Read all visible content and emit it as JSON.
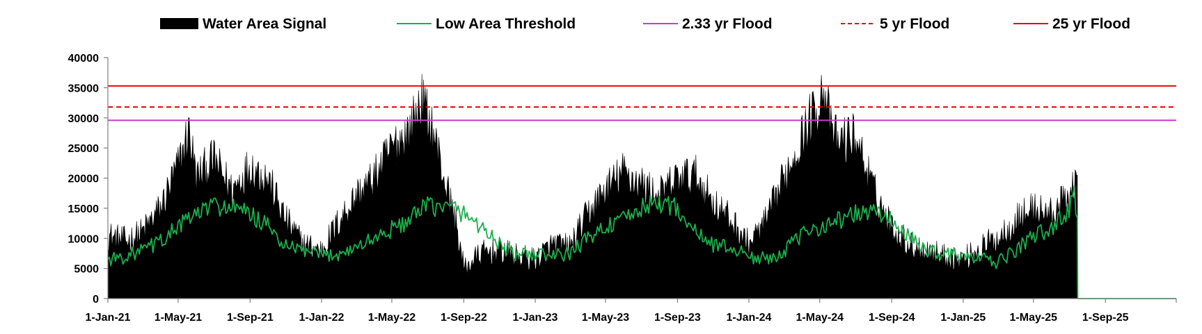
{
  "colors": {
    "water_area_signal": "#000000",
    "low_area_threshold": "#19b04b",
    "flood_2_33yr": "#c83cc8",
    "flood_5yr": "#e60000",
    "flood_25yr": "#e60000"
  },
  "chart_data": {
    "type": "area",
    "title": "",
    "xlabel": "",
    "ylabel": "",
    "ylim": [
      0,
      40000
    ],
    "y_ticks": [
      0,
      5000,
      10000,
      15000,
      20000,
      25000,
      30000,
      35000,
      40000
    ],
    "y_tick_labels": [
      "0",
      "5000",
      "10000",
      "15000",
      "20000",
      "25000",
      "30000",
      "35000",
      "40000"
    ],
    "x_range": [
      "2021-01-01",
      "2025-12-31"
    ],
    "x_ticks": [
      "2021-01-01",
      "2021-05-01",
      "2021-09-01",
      "2022-01-01",
      "2022-05-01",
      "2022-09-01",
      "2023-01-01",
      "2023-05-01",
      "2023-09-01",
      "2024-01-01",
      "2024-05-01",
      "2024-09-01",
      "2025-01-01",
      "2025-05-01",
      "2025-09-01"
    ],
    "x_tick_labels": [
      "1-Jan-21",
      "1-May-21",
      "1-Sep-21",
      "1-Jan-22",
      "1-May-22",
      "1-Sep-22",
      "1-Jan-23",
      "1-May-23",
      "1-Sep-23",
      "1-Jan-24",
      "1-May-24",
      "1-Sep-24",
      "1-Jan-25",
      "1-May-25",
      "1-Sep-25"
    ],
    "grid": false,
    "legend_position": "top",
    "legend": [
      {
        "key": "signal",
        "label": "Water Area Signal"
      },
      {
        "key": "threshold",
        "label": "Low Area Threshold"
      },
      {
        "key": "f233",
        "label": "2.33 yr Flood"
      },
      {
        "key": "f5",
        "label": "5 yr Flood"
      },
      {
        "key": "f25",
        "label": "25 yr Flood"
      }
    ],
    "flood_levels": {
      "f233": 29600,
      "f5": 31800,
      "f25": 35300
    },
    "series": [
      {
        "name": "Water Area Signal",
        "style": "filled-area",
        "x": [
          "2021-01-01",
          "2021-02-01",
          "2021-03-01",
          "2021-04-01",
          "2021-05-01",
          "2021-05-20",
          "2021-06-01",
          "2021-07-01",
          "2021-08-01",
          "2021-09-01",
          "2021-10-01",
          "2021-11-01",
          "2021-12-01",
          "2022-01-01",
          "2022-02-01",
          "2022-03-01",
          "2022-04-01",
          "2022-05-01",
          "2022-06-01",
          "2022-06-20",
          "2022-07-10",
          "2022-08-01",
          "2022-08-20",
          "2022-09-01",
          "2022-10-01",
          "2022-11-01",
          "2022-12-01",
          "2023-01-01",
          "2023-02-01",
          "2023-03-01",
          "2023-04-01",
          "2023-05-01",
          "2023-06-01",
          "2023-07-01",
          "2023-08-01",
          "2023-09-01",
          "2023-10-01",
          "2023-11-01",
          "2023-12-01",
          "2024-01-01",
          "2024-02-01",
          "2024-03-01",
          "2024-04-01",
          "2024-05-01",
          "2024-05-08",
          "2024-05-20",
          "2024-06-01",
          "2024-07-01",
          "2024-08-01",
          "2024-09-01",
          "2024-10-01",
          "2024-11-01",
          "2024-12-01",
          "2025-01-01",
          "2025-02-01",
          "2025-03-01",
          "2025-04-01",
          "2025-05-01",
          "2025-06-01",
          "2025-07-01",
          "2025-07-10",
          "2025-07-15",
          "2025-12-31"
        ],
        "values": [
          10500,
          9500,
          11000,
          15000,
          22000,
          28000,
          20000,
          23000,
          18000,
          22000,
          20000,
          13000,
          9000,
          8000,
          13000,
          17000,
          20000,
          25000,
          28000,
          33000,
          28000,
          19000,
          12000,
          5000,
          7500,
          8000,
          7000,
          6500,
          9000,
          8500,
          14000,
          18000,
          21000,
          19000,
          17000,
          20000,
          20500,
          16000,
          13000,
          9000,
          13000,
          20000,
          27000,
          33000,
          35800,
          28000,
          26000,
          27000,
          18000,
          12000,
          9000,
          8000,
          7000,
          6500,
          8500,
          10000,
          13000,
          15000,
          14000,
          17000,
          20000,
          20500,
          0
        ]
      },
      {
        "name": "Low Area Threshold",
        "style": "line",
        "x": [
          "2021-01-01",
          "2021-02-01",
          "2021-03-01",
          "2021-04-01",
          "2021-05-01",
          "2021-06-01",
          "2021-07-01",
          "2021-08-01",
          "2021-09-01",
          "2021-10-01",
          "2021-11-01",
          "2021-12-01",
          "2022-01-01",
          "2022-02-01",
          "2022-03-01",
          "2022-04-01",
          "2022-05-01",
          "2022-06-01",
          "2022-07-01",
          "2022-08-01",
          "2022-08-20",
          "2022-09-01",
          "2022-10-01",
          "2022-11-01",
          "2022-12-01",
          "2023-01-01",
          "2023-02-01",
          "2023-03-01",
          "2023-04-01",
          "2023-05-01",
          "2023-06-01",
          "2023-07-01",
          "2023-08-01",
          "2023-09-01",
          "2023-10-01",
          "2023-11-01",
          "2023-12-01",
          "2024-01-01",
          "2024-02-01",
          "2024-03-01",
          "2024-04-01",
          "2024-05-01",
          "2024-06-01",
          "2024-07-01",
          "2024-08-01",
          "2024-09-01",
          "2024-10-01",
          "2024-11-01",
          "2024-12-01",
          "2025-01-01",
          "2025-02-01",
          "2025-03-01",
          "2025-04-01",
          "2025-05-01",
          "2025-06-01",
          "2025-07-01",
          "2025-07-10",
          "2025-07-15",
          "2025-12-31"
        ],
        "values": [
          6500,
          7000,
          8000,
          9500,
          12000,
          14000,
          15500,
          15000,
          14000,
          12000,
          8500,
          8000,
          7000,
          7500,
          8500,
          10000,
          11500,
          13000,
          15500,
          15000,
          15000,
          14000,
          12000,
          9000,
          7000,
          7500,
          7000,
          7500,
          10000,
          12000,
          13000,
          15000,
          16000,
          15000,
          11000,
          9000,
          8500,
          7000,
          6500,
          8000,
          10500,
          12000,
          13000,
          14000,
          14500,
          13000,
          10000,
          8000,
          7500,
          7000,
          6500,
          6000,
          8000,
          10500,
          11500,
          15000,
          17000,
          13500,
          0
        ]
      }
    ]
  }
}
